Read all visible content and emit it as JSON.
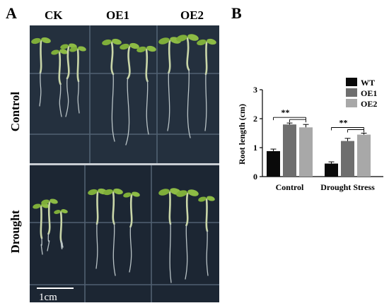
{
  "figure": {
    "panel_a_label": "A",
    "panel_b_label": "B",
    "columns": [
      "CK",
      "OE1",
      "OE2"
    ],
    "rows": [
      "Control",
      "Drought"
    ],
    "scale_bar": "1cm"
  },
  "chart_data": {
    "type": "bar",
    "ylabel": "Root length (cm)",
    "ylim": [
      0,
      3
    ],
    "yticks": [
      0,
      1,
      2,
      3
    ],
    "categories": [
      "Control",
      "Drought Stress"
    ],
    "legend_position": "top-right",
    "series": [
      {
        "name": "WT",
        "color": "#0a0a0a",
        "values": [
          0.88,
          0.45
        ],
        "errors": [
          0.07,
          0.06
        ]
      },
      {
        "name": "OE1",
        "color": "#6e6e6e",
        "values": [
          1.8,
          1.23
        ],
        "errors": [
          0.05,
          0.09
        ]
      },
      {
        "name": "OE2",
        "color": "#a8a8a8",
        "values": [
          1.7,
          1.45
        ],
        "errors": [
          0.1,
          0.05
        ]
      }
    ],
    "significance": [
      "**",
      "**"
    ]
  }
}
